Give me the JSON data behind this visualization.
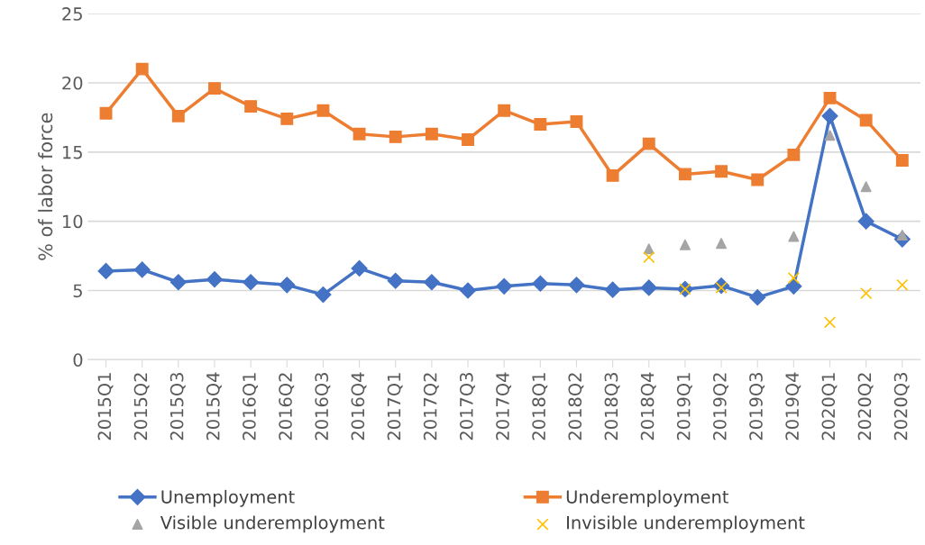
{
  "chart_data": {
    "type": "line",
    "ylabel": "% of labor force",
    "categories": [
      "2015Q1",
      "2015Q2",
      "2015Q3",
      "2015Q4",
      "2016Q1",
      "2016Q2",
      "2016Q3",
      "2016Q4",
      "2017Q1",
      "2017Q2",
      "2017Q3",
      "2017Q4",
      "2018Q1",
      "2018Q2",
      "2018Q3",
      "2018Q4",
      "2019Q1",
      "2019Q2",
      "2019Q3",
      "2019Q4",
      "2020Q1",
      "2020Q2",
      "2020Q3"
    ],
    "series": [
      {
        "name": "Unemployment",
        "marker": "diamond",
        "color": "#4472c4",
        "values": [
          6.4,
          6.5,
          5.6,
          5.8,
          5.6,
          5.4,
          4.7,
          6.6,
          5.7,
          5.6,
          5.0,
          5.3,
          5.5,
          5.4,
          5.05,
          5.2,
          5.1,
          5.35,
          4.5,
          5.3,
          17.6,
          10.0,
          8.7
        ]
      },
      {
        "name": "Underemployment",
        "marker": "square",
        "color": "#ed7d31",
        "values": [
          17.8,
          21.0,
          17.6,
          19.6,
          18.3,
          17.4,
          18.0,
          16.3,
          16.1,
          16.3,
          15.9,
          18.0,
          17.0,
          17.2,
          13.3,
          15.6,
          13.4,
          13.6,
          13.0,
          14.8,
          18.9,
          17.3,
          14.4
        ]
      },
      {
        "name": "Visible underemployment",
        "type": "scatter",
        "marker": "triangle",
        "color": "#a5a5a5",
        "values": [
          null,
          null,
          null,
          null,
          null,
          null,
          null,
          null,
          null,
          null,
          null,
          null,
          null,
          null,
          null,
          8.0,
          8.3,
          8.4,
          null,
          8.9,
          16.2,
          12.5,
          9.0
        ]
      },
      {
        "name": "Invisible underemployment",
        "type": "scatter",
        "marker": "cross",
        "color": "#ffc000",
        "values": [
          null,
          null,
          null,
          null,
          null,
          null,
          null,
          null,
          null,
          null,
          null,
          null,
          null,
          null,
          null,
          7.4,
          5.1,
          5.2,
          null,
          5.9,
          2.7,
          4.8,
          5.4
        ]
      }
    ],
    "ylim": [
      0,
      25
    ],
    "yticks": [
      0,
      5,
      10,
      15,
      20,
      25
    ],
    "grid": "y",
    "legend": "bottom"
  }
}
